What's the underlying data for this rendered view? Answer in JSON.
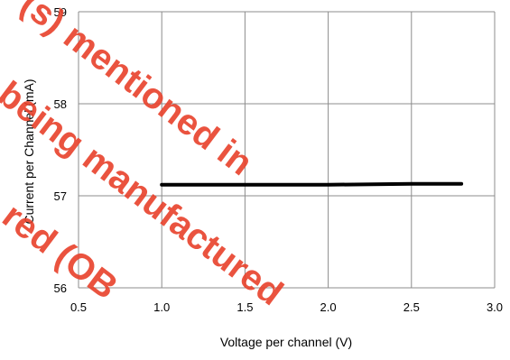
{
  "colors": {
    "grid": "#8c8c8c",
    "series": "#000000",
    "watermark": "#e8402a"
  },
  "watermark": {
    "line1": "(s) mentioned in",
    "line2": "being manufactured",
    "line3": "red (OB"
  },
  "chart_data": {
    "type": "line",
    "title": "",
    "xlabel": "Voltage per channel (V)",
    "ylabel": "Current per Channel (mA)",
    "xlim": [
      0.5,
      3.0
    ],
    "ylim": [
      56,
      59
    ],
    "xticks": [
      0.5,
      1.0,
      1.5,
      2.0,
      2.5,
      3.0
    ],
    "yticks": [
      56,
      57,
      58,
      59
    ],
    "xtick_labels": [
      "0.5",
      "1.0",
      "1.5",
      "2.0",
      "2.5",
      "3.0"
    ],
    "ytick_labels": [
      "56",
      "57",
      "58",
      "59"
    ],
    "grid": true,
    "legend": "none",
    "series": [
      {
        "x": [
          1.0,
          1.5,
          2.0,
          2.5,
          2.8
        ],
        "y": [
          57.12,
          57.12,
          57.12,
          57.13,
          57.13
        ]
      }
    ]
  }
}
